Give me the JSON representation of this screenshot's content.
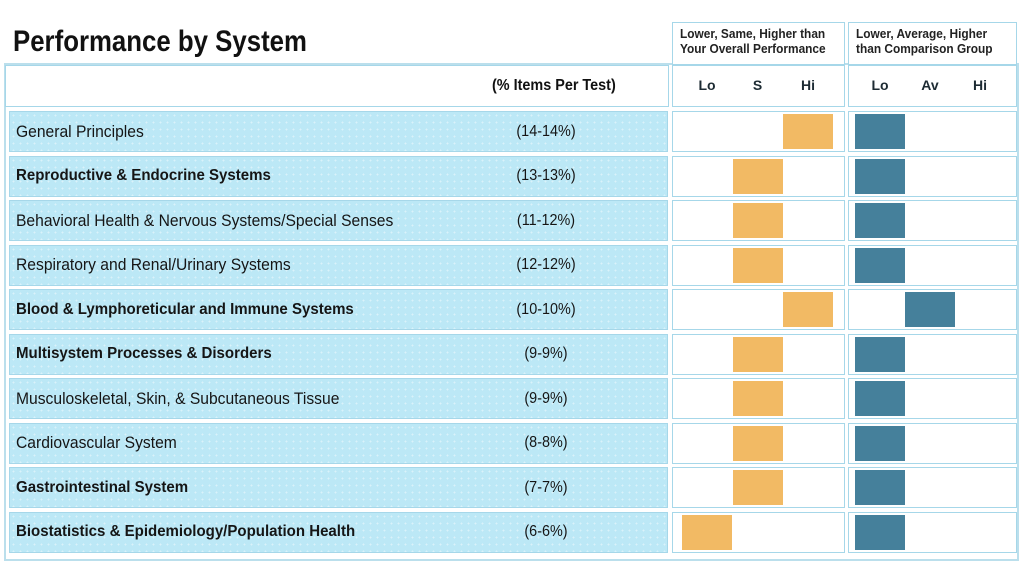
{
  "colors": {
    "marker_overall_orange": "#F2BA64",
    "marker_comparison_teal": "#45809B",
    "row_background": "#BCE8F6",
    "cell_border": "#A6D7E9",
    "outer_border": "#BBDFEC"
  },
  "chart_data": {
    "type": "table",
    "title": "Performance by System",
    "percent_header": "(% Items Per Test)",
    "groups": [
      {
        "heading_lines": [
          "Lower, Same, Higher than",
          "Your Overall Performance"
        ],
        "columns": [
          "Lo",
          "S",
          "Hi"
        ]
      },
      {
        "heading_lines": [
          "Lower, Average, Higher",
          "than Comparison Group"
        ],
        "columns": [
          "Lo",
          "Av",
          "Hi"
        ]
      }
    ],
    "rows": [
      {
        "label": "General Principles",
        "percent": "(14-14%)",
        "bold": false,
        "overall": "Hi",
        "comparison": "Lo"
      },
      {
        "label": "Reproductive & Endocrine Systems",
        "percent": "(13-13%)",
        "bold": true,
        "overall": "S",
        "comparison": "Lo"
      },
      {
        "label": "Behavioral Health & Nervous Systems/Special Senses",
        "percent": "(11-12%)",
        "bold": false,
        "overall": "S",
        "comparison": "Lo"
      },
      {
        "label": "Respiratory and Renal/Urinary Systems",
        "percent": "(12-12%)",
        "bold": false,
        "overall": "S",
        "comparison": "Lo"
      },
      {
        "label": "Blood & Lymphoreticular and Immune Systems",
        "percent": "(10-10%)",
        "bold": true,
        "overall": "Hi",
        "comparison": "Av"
      },
      {
        "label": "Multisystem Processes & Disorders",
        "percent": "(9-9%)",
        "bold": true,
        "overall": "S",
        "comparison": "Lo"
      },
      {
        "label": "Musculoskeletal, Skin, & Subcutaneous Tissue",
        "percent": "(9-9%)",
        "bold": false,
        "overall": "S",
        "comparison": "Lo"
      },
      {
        "label": "Cardiovascular System",
        "percent": "(8-8%)",
        "bold": false,
        "overall": "S",
        "comparison": "Lo"
      },
      {
        "label": "Gastrointestinal System",
        "percent": "(7-7%)",
        "bold": true,
        "overall": "S",
        "comparison": "Lo"
      },
      {
        "label": "Biostatistics & Epidemiology/Population Health",
        "percent": "(6-6%)",
        "bold": true,
        "overall": "Lo",
        "comparison": "Lo"
      }
    ]
  }
}
